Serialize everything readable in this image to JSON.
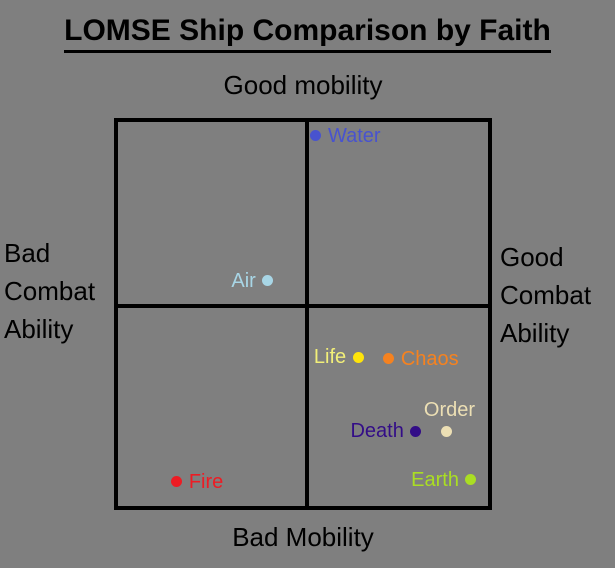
{
  "page": {
    "background_color": "#7f7f7f",
    "text_color": "#000000"
  },
  "chart_data": {
    "type": "scatter",
    "title": "LOMSE Ship Comparison by Faith",
    "legend": "none",
    "grid": "2x2 quadrant grid, black lines",
    "y_axis": {
      "meaning": "Mobility (top = good, bottom = bad)",
      "top_label": "Good mobility",
      "bottom_label": "Bad Mobility"
    },
    "x_axis": {
      "meaning": "Combat Ability (left = bad, right = good)",
      "left_label_lines": [
        "Bad",
        "Combat",
        "Ability"
      ],
      "right_label_lines": [
        "Good",
        "Combat",
        "Ability"
      ]
    },
    "points": [
      {
        "name": "Water",
        "x_pct": 53.5,
        "y_pct": 3.4,
        "dot_color": "#4853cf",
        "label_color": "#4853cf",
        "label_side": "right"
      },
      {
        "name": "Air",
        "x_pct": 40.5,
        "y_pct": 41.4,
        "dot_color": "#a8d6e6",
        "label_color": "#a8d6e6",
        "label_side": "left"
      },
      {
        "name": "Life",
        "x_pct": 64.9,
        "y_pct": 61.2,
        "dot_color": "#ffe40a",
        "label_color": "#f2ef79",
        "label_side": "left"
      },
      {
        "name": "Chaos",
        "x_pct": 73.2,
        "y_pct": 61.5,
        "dot_color": "#f58220",
        "label_color": "#f58220",
        "label_side": "right"
      },
      {
        "name": "Death",
        "x_pct": 80.5,
        "y_pct": 80.5,
        "dot_color": "#330d87",
        "label_color": "#330d87",
        "label_side": "left"
      },
      {
        "name": "Order",
        "x_pct": 88.9,
        "y_pct": 80.5,
        "dot_color": "#ecdfb4",
        "label_color": "#ecdfb4",
        "label_side": "above"
      },
      {
        "name": "Fire",
        "x_pct": 15.9,
        "y_pct": 93.5,
        "dot_color": "#ed1c24",
        "label_color": "#ed1c24",
        "label_side": "right"
      },
      {
        "name": "Earth",
        "x_pct": 95.4,
        "y_pct": 93.2,
        "dot_color": "#aade23",
        "label_color": "#aade23",
        "label_side": "left"
      }
    ]
  }
}
